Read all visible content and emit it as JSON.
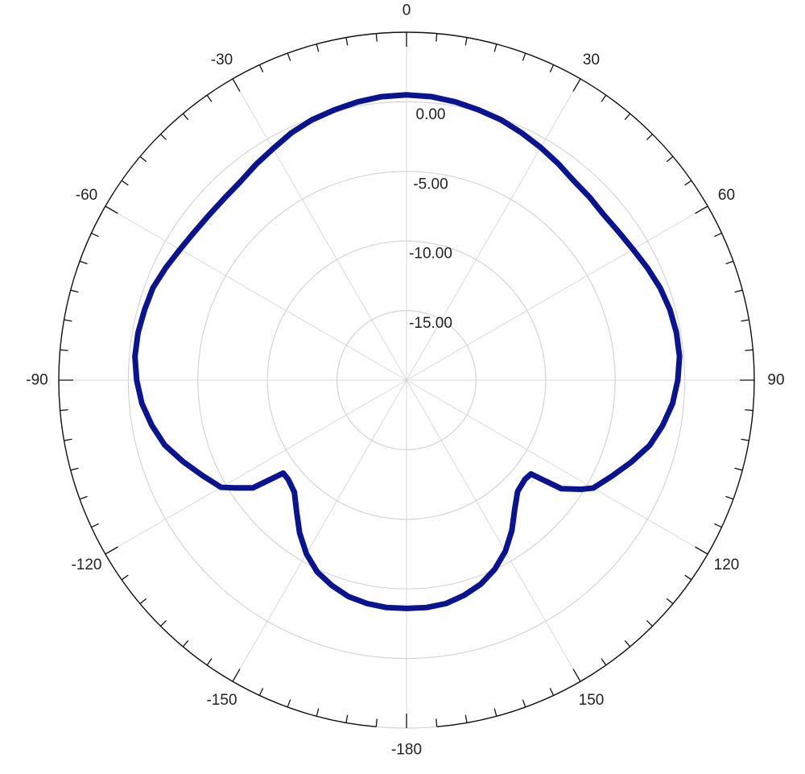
{
  "chart_data": {
    "type": "polar-line",
    "angle_direction": "clockwise",
    "zero_angle": "top",
    "angle_labels": [
      {
        "angle": 0,
        "text": "0"
      },
      {
        "angle": 30,
        "text": "30"
      },
      {
        "angle": 60,
        "text": "60"
      },
      {
        "angle": 90,
        "text": "90"
      },
      {
        "angle": 120,
        "text": "120"
      },
      {
        "angle": 150,
        "text": "150"
      },
      {
        "angle": 180,
        "text": "-180"
      },
      {
        "angle": -150,
        "text": "-150"
      },
      {
        "angle": -120,
        "text": "-120"
      },
      {
        "angle": -90,
        "text": "-90"
      },
      {
        "angle": -60,
        "text": "-60"
      },
      {
        "angle": -30,
        "text": "-30"
      }
    ],
    "radial_range": [
      -20,
      5
    ],
    "radial_rings": [
      -15,
      -10,
      -5,
      0,
      5
    ],
    "radial_labels": [
      {
        "value": 0,
        "text": "0.00"
      },
      {
        "value": -5,
        "text": "-5.00"
      },
      {
        "value": -10,
        "text": "-10.00"
      },
      {
        "value": -15,
        "text": "-15.00"
      }
    ],
    "grid": true,
    "series": [
      {
        "color": "#0a1490",
        "points": [
          [
            -180,
            -3.6
          ],
          [
            -175,
            -3.6
          ],
          [
            -170,
            -3.7
          ],
          [
            -165,
            -3.9
          ],
          [
            -160,
            -4.3
          ],
          [
            -155,
            -4.8
          ],
          [
            -150,
            -5.6
          ],
          [
            -145,
            -6.6
          ],
          [
            -140,
            -7.7
          ],
          [
            -135,
            -8.6
          ],
          [
            -130,
            -8.9
          ],
          [
            -127,
            -8.9
          ],
          [
            -125,
            -6.5
          ],
          [
            -122,
            -5.4
          ],
          [
            -120,
            -4.6
          ],
          [
            -115,
            -3.8
          ],
          [
            -110,
            -2.9
          ],
          [
            -105,
            -2.0
          ],
          [
            -100,
            -1.4
          ],
          [
            -95,
            -0.9
          ],
          [
            -90,
            -0.6
          ],
          [
            -85,
            -0.4
          ],
          [
            -80,
            -0.4
          ],
          [
            -75,
            -0.5
          ],
          [
            -70,
            -0.6
          ],
          [
            -65,
            -0.9
          ],
          [
            -60,
            -1.2
          ],
          [
            -55,
            -1.4
          ],
          [
            -50,
            -1.5
          ],
          [
            -45,
            -1.5
          ],
          [
            -40,
            -1.4
          ],
          [
            -35,
            -1.1
          ],
          [
            -30,
            -0.8
          ],
          [
            -25,
            -0.4
          ],
          [
            -20,
            -0.1
          ],
          [
            -15,
            0.1
          ],
          [
            -10,
            0.3
          ],
          [
            -5,
            0.45
          ],
          [
            0,
            0.5
          ],
          [
            5,
            0.45
          ],
          [
            10,
            0.3
          ],
          [
            15,
            0.1
          ],
          [
            20,
            -0.1
          ],
          [
            25,
            -0.4
          ],
          [
            30,
            -0.7
          ],
          [
            35,
            -1.0
          ],
          [
            40,
            -1.3
          ],
          [
            45,
            -1.4
          ],
          [
            50,
            -1.5
          ],
          [
            55,
            -1.4
          ],
          [
            60,
            -1.2
          ],
          [
            65,
            -0.9
          ],
          [
            70,
            -0.6
          ],
          [
            75,
            -0.4
          ],
          [
            80,
            -0.3
          ],
          [
            85,
            -0.3
          ],
          [
            90,
            -0.5
          ],
          [
            95,
            -0.8
          ],
          [
            100,
            -1.3
          ],
          [
            105,
            -1.9
          ],
          [
            110,
            -2.8
          ],
          [
            115,
            -3.7
          ],
          [
            120,
            -4.5
          ],
          [
            122,
            -5.2
          ],
          [
            125,
            -6.4
          ],
          [
            127,
            -8.8
          ],
          [
            130,
            -8.9
          ],
          [
            135,
            -8.7
          ],
          [
            140,
            -7.9
          ],
          [
            145,
            -6.8
          ],
          [
            150,
            -5.8
          ],
          [
            155,
            -5.0
          ],
          [
            160,
            -4.4
          ],
          [
            165,
            -4.0
          ],
          [
            170,
            -3.7
          ],
          [
            175,
            -3.6
          ],
          [
            180,
            -3.6
          ]
        ]
      }
    ]
  }
}
